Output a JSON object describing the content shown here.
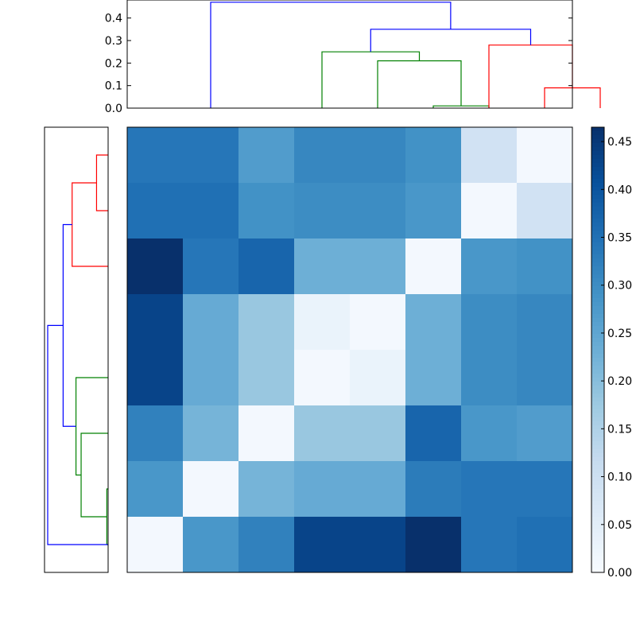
{
  "chart_data": [
    {
      "type": "dendrogram",
      "orientation": "top",
      "ylim": [
        0,
        0.48
      ],
      "ytick_values": [
        0.0,
        0.1,
        0.2,
        0.3,
        0.4
      ],
      "ytick_labels": [
        "0.0",
        "0.1",
        "0.2",
        "0.3",
        "0.4"
      ],
      "links": [
        {
          "left": 5.5,
          "right": 6.5,
          "height": 0.01,
          "color": "#008000"
        },
        {
          "left": 4.5,
          "right": 6.0,
          "height": 0.21,
          "color": "#008000"
        },
        {
          "left": 3.5,
          "right": 5.25,
          "height": 0.25,
          "color": "#008000"
        },
        {
          "left": 7.5,
          "right": 8.5,
          "height": 0.09,
          "color": "#ff0000"
        },
        {
          "left": 6.5,
          "right": 8.0,
          "height": 0.28,
          "color": "#ff0000"
        },
        {
          "left": 4.375,
          "right": 7.25,
          "height": 0.35,
          "color": "#0000ff"
        },
        {
          "left": 1.5,
          "right": 5.8125,
          "height": 0.47,
          "color": "#0000ff"
        }
      ]
    },
    {
      "type": "dendrogram",
      "orientation": "left",
      "links": [
        {
          "top": 6.5,
          "bottom": 7.5,
          "height": 0.01,
          "color": "#008000"
        },
        {
          "top": 5.5,
          "bottom": 7.0,
          "height": 0.21,
          "color": "#008000"
        },
        {
          "top": 4.5,
          "bottom": 6.25,
          "height": 0.25,
          "color": "#008000"
        },
        {
          "top": 0.5,
          "bottom": 1.5,
          "height": 0.09,
          "color": "#ff0000"
        },
        {
          "top": 1.0,
          "bottom": 2.5,
          "height": 0.28,
          "color": "#ff0000"
        },
        {
          "top": 1.75,
          "bottom": 5.375,
          "height": 0.35,
          "color": "#0000ff"
        },
        {
          "top": 3.5625,
          "bottom": 7.5,
          "height": 0.47,
          "color": "#0000ff"
        }
      ]
    },
    {
      "type": "heatmap",
      "colormap": "Blues",
      "vmin": 0.0,
      "vmax": 0.465,
      "values": [
        [
          0.34,
          0.34,
          0.27,
          0.31,
          0.31,
          0.29,
          0.09,
          0.01
        ],
        [
          0.35,
          0.35,
          0.29,
          0.3,
          0.3,
          0.28,
          0.01,
          0.09
        ],
        [
          0.465,
          0.34,
          0.37,
          0.23,
          0.23,
          0.01,
          0.28,
          0.29
        ],
        [
          0.43,
          0.24,
          0.18,
          0.03,
          0.01,
          0.23,
          0.3,
          0.31
        ],
        [
          0.43,
          0.24,
          0.18,
          0.01,
          0.03,
          0.23,
          0.3,
          0.31
        ],
        [
          0.32,
          0.22,
          0.01,
          0.18,
          0.18,
          0.37,
          0.28,
          0.27
        ],
        [
          0.28,
          0.01,
          0.22,
          0.24,
          0.24,
          0.33,
          0.34,
          0.34
        ],
        [
          0.01,
          0.28,
          0.32,
          0.43,
          0.43,
          0.465,
          0.34,
          0.35
        ]
      ]
    },
    {
      "type": "colorbar",
      "colormap": "Blues",
      "vmin": 0.0,
      "vmax": 0.465,
      "tick_values": [
        0.0,
        0.05,
        0.1,
        0.15,
        0.2,
        0.25,
        0.3,
        0.35,
        0.4,
        0.45
      ],
      "tick_labels": [
        "0.00",
        "0.05",
        "0.10",
        "0.15",
        "0.20",
        "0.25",
        "0.30",
        "0.35",
        "0.40",
        "0.45"
      ]
    }
  ]
}
